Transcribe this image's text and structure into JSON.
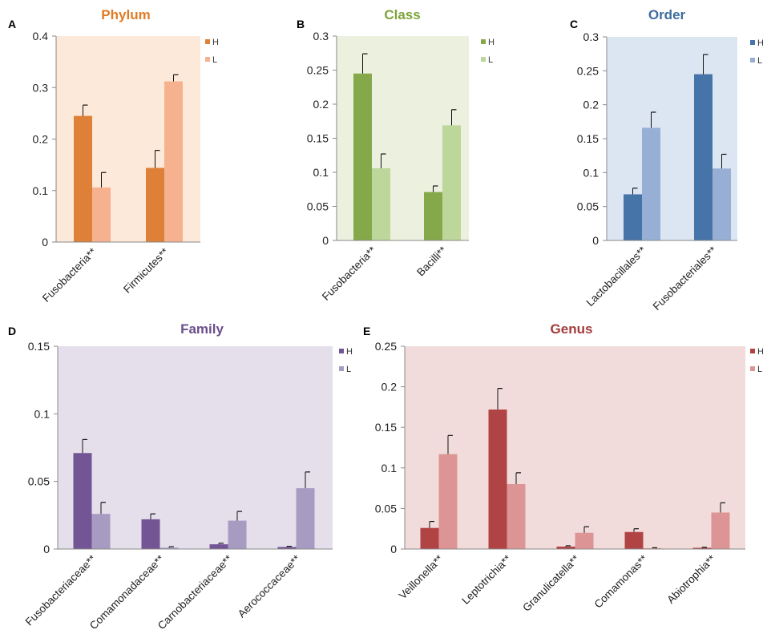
{
  "chart_data": [
    {
      "panel": "A",
      "type": "bar",
      "title": "Phylum",
      "title_color": "#E07B24",
      "background": "#FDE9D9",
      "colors": {
        "H": "#DE8037",
        "L": "#F6B28F"
      },
      "categories": [
        "Fusobacteria**",
        "Firmicutes**"
      ],
      "series": [
        {
          "name": "H",
          "values": [
            0.245,
            0.144
          ],
          "errors": [
            0.021,
            0.034
          ]
        },
        {
          "name": "L",
          "values": [
            0.106,
            0.312
          ],
          "errors": [
            0.029,
            0.013
          ]
        }
      ],
      "ylim": [
        0,
        0.4
      ],
      "yticks": [
        0,
        0.1,
        0.2,
        0.3,
        0.4
      ],
      "ytick_labels": [
        "0",
        "0.1",
        "0.2",
        "0.3",
        "0.4"
      ],
      "legend_position": "right"
    },
    {
      "panel": "B",
      "type": "bar",
      "title": "Class",
      "title_color": "#7EA33A",
      "background": "#EBF1DE",
      "colors": {
        "H": "#84A84A",
        "L": "#BDD699"
      },
      "categories": [
        "Fusobacteria**",
        "Bacilli**"
      ],
      "series": [
        {
          "name": "H",
          "values": [
            0.245,
            0.071
          ],
          "errors": [
            0.029,
            0.009
          ]
        },
        {
          "name": "L",
          "values": [
            0.106,
            0.169
          ],
          "errors": [
            0.021,
            0.023
          ]
        }
      ],
      "ylim": [
        0,
        0.3
      ],
      "yticks": [
        0,
        0.05,
        0.1,
        0.15,
        0.2,
        0.25,
        0.3
      ],
      "ytick_labels": [
        "0",
        "0.05",
        "0.1",
        "0.15",
        "0.2",
        "0.25",
        "0.3"
      ],
      "legend_position": "right"
    },
    {
      "panel": "C",
      "type": "bar",
      "title": "Order",
      "title_color": "#3F6D9E",
      "background": "#DCE6F2",
      "colors": {
        "H": "#4674A8",
        "L": "#97AFD5"
      },
      "categories": [
        "Lactobacillales**",
        "Fusobacteriales**"
      ],
      "series": [
        {
          "name": "H",
          "values": [
            0.068,
            0.245
          ],
          "errors": [
            0.009,
            0.029
          ]
        },
        {
          "name": "L",
          "values": [
            0.166,
            0.106
          ],
          "errors": [
            0.023,
            0.021
          ]
        }
      ],
      "ylim": [
        0,
        0.3
      ],
      "yticks": [
        0,
        0.05,
        0.1,
        0.15,
        0.2,
        0.25,
        0.3
      ],
      "ytick_labels": [
        "0",
        "0.05",
        "0.1",
        "0.15",
        "0.2",
        "0.25",
        "0.3"
      ],
      "legend_position": "right"
    },
    {
      "panel": "D",
      "type": "bar",
      "title": "Family",
      "title_color": "#6B4E8C",
      "background": "#E5DFEC",
      "colors": {
        "H": "#735595",
        "L": "#A89BC2"
      },
      "categories": [
        "Fusobacteriaceae**",
        "Comamonadaceae**",
        "Carnobacteriaceae**",
        "Aerococcaceae**"
      ],
      "series": [
        {
          "name": "H",
          "values": [
            0.071,
            0.022,
            0.0035,
            0.0015
          ],
          "errors": [
            0.01,
            0.004,
            0.0008,
            0.0005
          ]
        },
        {
          "name": "L",
          "values": [
            0.026,
            0.001,
            0.021,
            0.045
          ],
          "errors": [
            0.0085,
            0.0007,
            0.0068,
            0.012
          ]
        }
      ],
      "ylim": [
        0,
        0.15
      ],
      "yticks": [
        0,
        0.05,
        0.1,
        0.15
      ],
      "ytick_labels": [
        "0",
        "0.05",
        "0.1",
        "0.15"
      ],
      "legend_position": "right"
    },
    {
      "panel": "E",
      "type": "bar",
      "title": "Genus",
      "title_color": "#A33A3A",
      "background": "#F2DCDB",
      "colors": {
        "H": "#B04444",
        "L": "#DC9594"
      },
      "categories": [
        "Veillonella**",
        "Leptotrichia**",
        "Granulicatella**",
        "Comamonas**",
        "Abiotrophia**"
      ],
      "series": [
        {
          "name": "H",
          "values": [
            0.026,
            0.172,
            0.003,
            0.021,
            0.0015
          ],
          "errors": [
            0.008,
            0.026,
            0.001,
            0.004,
            0.0006
          ]
        },
        {
          "name": "L",
          "values": [
            0.117,
            0.08,
            0.02,
            0.001,
            0.045
          ],
          "errors": [
            0.023,
            0.014,
            0.0075,
            0.0006,
            0.012
          ]
        }
      ],
      "ylim": [
        0,
        0.25
      ],
      "yticks": [
        0,
        0.05,
        0.1,
        0.15,
        0.2,
        0.25
      ],
      "ytick_labels": [
        "0",
        "0.05",
        "0.1",
        "0.15",
        "0.2",
        "0.25"
      ],
      "legend_position": "right"
    }
  ]
}
